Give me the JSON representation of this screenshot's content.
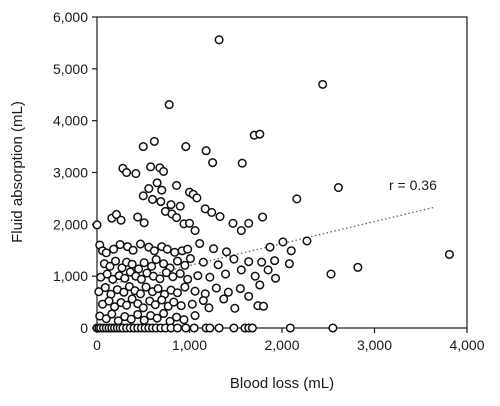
{
  "chart_data": {
    "type": "scatter",
    "xlabel": "Blood loss (mL)",
    "ylabel": "Fluid absorption (mL)",
    "xlim": [
      0,
      4000
    ],
    "ylim": [
      0,
      6000
    ],
    "xticks": [
      0,
      1000,
      2000,
      3000,
      4000
    ],
    "yticks": [
      0,
      1000,
      2000,
      3000,
      4000,
      5000,
      6000
    ],
    "xtick_labels": [
      "0",
      "1,000",
      "2,000",
      "3,000",
      "4,000"
    ],
    "ytick_labels": [
      "0",
      "1,000",
      "2,000",
      "3,000",
      "4,000",
      "5,000",
      "6,000"
    ],
    "grid": false,
    "annotation": "r = 0.36",
    "trendline": {
      "style": "dotted",
      "x": [
        0,
        3650
      ],
      "y": [
        780,
        2330
      ]
    },
    "series": [
      {
        "marker": "open-circle",
        "points": [
          [
            1320,
            5560
          ],
          [
            2440,
            4700
          ],
          [
            780,
            4310
          ],
          [
            620,
            3600
          ],
          [
            500,
            3500
          ],
          [
            960,
            3500
          ],
          [
            1700,
            3720
          ],
          [
            1760,
            3740
          ],
          [
            1180,
            3420
          ],
          [
            1250,
            3190
          ],
          [
            1570,
            3180
          ],
          [
            2610,
            2710
          ],
          [
            280,
            3080
          ],
          [
            320,
            3000
          ],
          [
            420,
            2980
          ],
          [
            580,
            3110
          ],
          [
            680,
            3090
          ],
          [
            720,
            3020
          ],
          [
            650,
            2800
          ],
          [
            560,
            2690
          ],
          [
            700,
            2660
          ],
          [
            860,
            2750
          ],
          [
            1000,
            2620
          ],
          [
            1040,
            2580
          ],
          [
            500,
            2550
          ],
          [
            600,
            2480
          ],
          [
            690,
            2440
          ],
          [
            800,
            2380
          ],
          [
            900,
            2350
          ],
          [
            1080,
            2510
          ],
          [
            2160,
            2490
          ],
          [
            1170,
            2300
          ],
          [
            0,
            1990
          ],
          [
            160,
            2120
          ],
          [
            210,
            2190
          ],
          [
            260,
            2080
          ],
          [
            440,
            2140
          ],
          [
            510,
            2030
          ],
          [
            740,
            2250
          ],
          [
            810,
            2200
          ],
          [
            860,
            2130
          ],
          [
            940,
            2010
          ],
          [
            1000,
            2020
          ],
          [
            1240,
            2230
          ],
          [
            1330,
            2150
          ],
          [
            1470,
            2020
          ],
          [
            1640,
            2020
          ],
          [
            1790,
            2140
          ],
          [
            1060,
            1880
          ],
          [
            1560,
            1880
          ],
          [
            1870,
            1560
          ],
          [
            2010,
            1660
          ],
          [
            2100,
            1490
          ],
          [
            1400,
            1470
          ],
          [
            1480,
            1330
          ],
          [
            1640,
            1280
          ],
          [
            1780,
            1270
          ],
          [
            1920,
            1300
          ],
          [
            2080,
            1240
          ],
          [
            2270,
            1680
          ],
          [
            2530,
            1040
          ],
          [
            2820,
            1170
          ],
          [
            3810,
            1420
          ],
          [
            30,
            1600
          ],
          [
            60,
            1490
          ],
          [
            100,
            1450
          ],
          [
            180,
            1520
          ],
          [
            250,
            1610
          ],
          [
            330,
            1570
          ],
          [
            390,
            1500
          ],
          [
            470,
            1620
          ],
          [
            560,
            1560
          ],
          [
            620,
            1490
          ],
          [
            700,
            1570
          ],
          [
            760,
            1520
          ],
          [
            840,
            1460
          ],
          [
            920,
            1490
          ],
          [
            980,
            1520
          ],
          [
            1110,
            1630
          ],
          [
            1260,
            1530
          ],
          [
            80,
            1240
          ],
          [
            140,
            1190
          ],
          [
            200,
            1290
          ],
          [
            270,
            1160
          ],
          [
            320,
            1270
          ],
          [
            380,
            1230
          ],
          [
            450,
            1140
          ],
          [
            510,
            1260
          ],
          [
            590,
            1190
          ],
          [
            640,
            1320
          ],
          [
            720,
            1240
          ],
          [
            790,
            1160
          ],
          [
            870,
            1290
          ],
          [
            950,
            1210
          ],
          [
            1010,
            1340
          ],
          [
            1150,
            1270
          ],
          [
            1310,
            1220
          ],
          [
            40,
            980
          ],
          [
            110,
            1040
          ],
          [
            170,
            940
          ],
          [
            240,
            1010
          ],
          [
            300,
            960
          ],
          [
            360,
            1080
          ],
          [
            420,
            1000
          ],
          [
            480,
            940
          ],
          [
            540,
            1060
          ],
          [
            610,
            1000
          ],
          [
            680,
            950
          ],
          [
            750,
            1070
          ],
          [
            820,
            990
          ],
          [
            900,
            1050
          ],
          [
            980,
            940
          ],
          [
            1090,
            1010
          ],
          [
            1220,
            980
          ],
          [
            1390,
            1040
          ],
          [
            1560,
            1120
          ],
          [
            1710,
            1000
          ],
          [
            1850,
            1120
          ],
          [
            1930,
            960
          ],
          [
            20,
            700
          ],
          [
            90,
            780
          ],
          [
            150,
            650
          ],
          [
            220,
            740
          ],
          [
            290,
            690
          ],
          [
            350,
            800
          ],
          [
            410,
            720
          ],
          [
            470,
            660
          ],
          [
            530,
            790
          ],
          [
            600,
            700
          ],
          [
            660,
            760
          ],
          [
            730,
            650
          ],
          [
            800,
            730
          ],
          [
            870,
            680
          ],
          [
            950,
            790
          ],
          [
            1060,
            710
          ],
          [
            1170,
            660
          ],
          [
            1290,
            770
          ],
          [
            1420,
            690
          ],
          [
            1550,
            760
          ],
          [
            1640,
            610
          ],
          [
            1760,
            830
          ],
          [
            60,
            460
          ],
          [
            130,
            520
          ],
          [
            190,
            410
          ],
          [
            260,
            490
          ],
          [
            320,
            440
          ],
          [
            380,
            560
          ],
          [
            440,
            470
          ],
          [
            500,
            390
          ],
          [
            570,
            520
          ],
          [
            630,
            450
          ],
          [
            700,
            540
          ],
          [
            770,
            420
          ],
          [
            830,
            500
          ],
          [
            910,
            430
          ],
          [
            1030,
            460
          ],
          [
            1150,
            530
          ],
          [
            1210,
            390
          ],
          [
            1370,
            560
          ],
          [
            1490,
            380
          ],
          [
            1740,
            430
          ],
          [
            1800,
            420
          ],
          [
            30,
            230
          ],
          [
            100,
            180
          ],
          [
            160,
            270
          ],
          [
            230,
            140
          ],
          [
            300,
            220
          ],
          [
            370,
            170
          ],
          [
            440,
            260
          ],
          [
            510,
            150
          ],
          [
            580,
            240
          ],
          [
            650,
            190
          ],
          [
            720,
            280
          ],
          [
            790,
            130
          ],
          [
            860,
            210
          ],
          [
            940,
            160
          ],
          [
            1060,
            240
          ],
          [
            0,
            0
          ],
          [
            20,
            0
          ],
          [
            40,
            0
          ],
          [
            70,
            0
          ],
          [
            100,
            0
          ],
          [
            130,
            0
          ],
          [
            160,
            0
          ],
          [
            190,
            0
          ],
          [
            220,
            0
          ],
          [
            250,
            0
          ],
          [
            280,
            0
          ],
          [
            320,
            0
          ],
          [
            360,
            0
          ],
          [
            400,
            0
          ],
          [
            440,
            0
          ],
          [
            480,
            0
          ],
          [
            520,
            0
          ],
          [
            560,
            0
          ],
          [
            600,
            0
          ],
          [
            640,
            0
          ],
          [
            690,
            0
          ],
          [
            740,
            0
          ],
          [
            800,
            0
          ],
          [
            870,
            0
          ],
          [
            960,
            0
          ],
          [
            1050,
            0
          ],
          [
            1180,
            0
          ],
          [
            1220,
            0
          ],
          [
            1320,
            0
          ],
          [
            1480,
            0
          ],
          [
            1600,
            0
          ],
          [
            1640,
            0
          ],
          [
            1680,
            0
          ],
          [
            2090,
            0
          ],
          [
            2550,
            0
          ]
        ]
      }
    ]
  }
}
